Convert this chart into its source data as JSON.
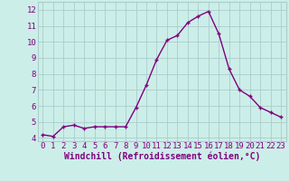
{
  "x": [
    0,
    1,
    2,
    3,
    4,
    5,
    6,
    7,
    8,
    9,
    10,
    11,
    12,
    13,
    14,
    15,
    16,
    17,
    18,
    19,
    20,
    21,
    22,
    23
  ],
  "y": [
    4.2,
    4.1,
    4.7,
    4.8,
    4.6,
    4.7,
    4.7,
    4.7,
    4.7,
    5.9,
    7.3,
    8.9,
    10.1,
    10.4,
    11.2,
    11.6,
    11.9,
    10.5,
    8.3,
    7.0,
    6.6,
    5.9,
    5.6,
    5.3
  ],
  "line_color": "#800080",
  "marker": "+",
  "marker_size": 3,
  "bg_color": "#cceee8",
  "grid_color": "#aacccc",
  "xlabel": "Windchill (Refroidissement éolien,°C)",
  "xlabel_fontsize": 7,
  "xtick_labels": [
    "0",
    "1",
    "2",
    "3",
    "4",
    "5",
    "6",
    "7",
    "8",
    "9",
    "10",
    "11",
    "12",
    "13",
    "14",
    "15",
    "16",
    "17",
    "18",
    "19",
    "20",
    "21",
    "22",
    "23"
  ],
  "ytick_labels": [
    "4",
    "5",
    "6",
    "7",
    "8",
    "9",
    "10",
    "11",
    "12"
  ],
  "yticks": [
    4,
    5,
    6,
    7,
    8,
    9,
    10,
    11,
    12
  ],
  "ylim": [
    3.8,
    12.5
  ],
  "xlim": [
    -0.5,
    23.5
  ],
  "tick_color": "#800080",
  "tick_fontsize": 6.5,
  "line_width": 1.0
}
